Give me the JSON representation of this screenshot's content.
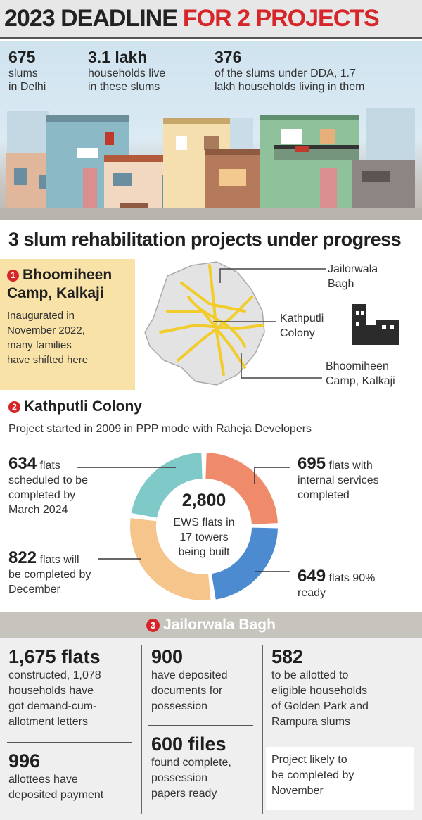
{
  "headline": {
    "part1": "2023 DEADLINE",
    "part2": "FOR 2 PROJECTS"
  },
  "stats": [
    {
      "value": "675",
      "text1": "slums",
      "text2": "in Delhi"
    },
    {
      "value": "3.1 lakh",
      "text1": "households live",
      "text2": "in these slums"
    },
    {
      "value": "376",
      "text1": "of the slums under DDA, 1.7",
      "text2": "lakh households living in them"
    }
  ],
  "section_title": "3 slum rehabilitation projects under progress",
  "project1": {
    "badge": "1",
    "title_line1": "Bhoomiheen",
    "title_line2": "Camp, Kalkaji",
    "body": [
      "Inaugurated in",
      "November 2022,",
      "many families",
      "have shifted here"
    ]
  },
  "map_labels": {
    "jailorwala": [
      "Jailorwala",
      "Bagh"
    ],
    "kathputli": [
      "Kathputli",
      "Colony"
    ],
    "bhoomiheen": [
      "Bhoomiheen",
      "Camp, Kalkaji"
    ]
  },
  "project2": {
    "badge": "2",
    "title": "Kathputli Colony",
    "subtitle": "Project started in 2009 in PPP mode with Raheja Developers",
    "center_value": "2,800",
    "center_text": [
      "EWS flats in",
      "17 towers",
      "being built"
    ],
    "segments": [
      {
        "value": 634,
        "unit": "flats",
        "lines": [
          "scheduled to be",
          "completed by",
          "March 2024"
        ],
        "color": "#7fc9c8"
      },
      {
        "value": 695,
        "unit": "flats with",
        "lines": [
          "internal services",
          "completed"
        ],
        "color": "#ef8a6a"
      },
      {
        "value": 649,
        "unit": "flats 90%",
        "lines": [
          "ready"
        ],
        "color": "#4c8bd0"
      },
      {
        "value": 822,
        "unit": "flats will",
        "lines": [
          "be completed by",
          "December"
        ],
        "color": "#f6c58c"
      }
    ],
    "labels": {
      "s1_value": "634",
      "s2_value": "695",
      "s3_value": "649",
      "s4_value": "822"
    }
  },
  "project3": {
    "badge": "3",
    "title": "Jailorwala Bagh",
    "c1_big": "1,675 flats",
    "c1_txt": [
      "constructed, 1,078",
      "households have",
      "got demand-cum-",
      "allotment letters"
    ],
    "c1b_big": "996",
    "c1b_txt": [
      "allottees have",
      "deposited payment"
    ],
    "c2_big": "900",
    "c2_txt": [
      "have deposited",
      "documents for",
      "possession"
    ],
    "c2b_big": "600 files",
    "c2b_txt": [
      "found complete,",
      "possession",
      "papers ready"
    ],
    "c3_big": "582",
    "c3_txt": [
      "to be allotted to",
      "eligible households",
      "of Golden Park and",
      "Rampura slums"
    ],
    "c3b_txt": [
      "Project likely to",
      "be completed by",
      "November"
    ]
  }
}
